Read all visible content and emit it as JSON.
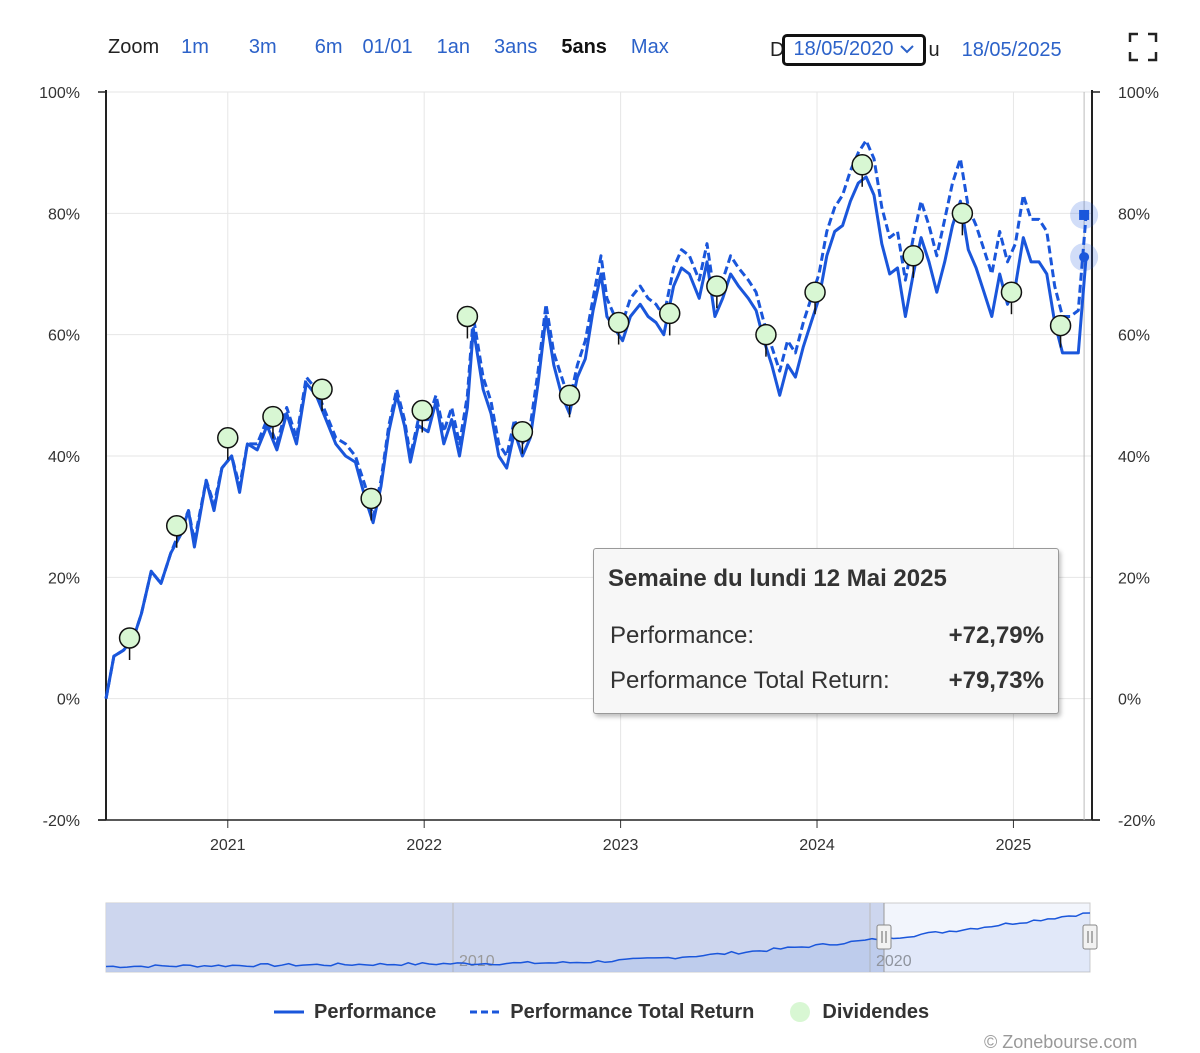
{
  "zoom": {
    "label": "Zoom",
    "options": [
      "1m",
      "3m",
      "6m",
      "01/01",
      "1an",
      "3ans",
      "5ans",
      "Max"
    ],
    "active": "5ans"
  },
  "range": {
    "from_label": "D",
    "from_value": "18/05/2020",
    "to_label": "u",
    "to_value": "18/05/2025"
  },
  "tooltip": {
    "title": "Semaine du lundi 12 Mai 2025",
    "rows": [
      {
        "label": "Performance:",
        "value": "+72,79%"
      },
      {
        "label": "Performance Total Return:",
        "value": "+79,73%"
      }
    ]
  },
  "legend": {
    "performance": "Performance",
    "total_return": "Performance Total Return",
    "dividends": "Dividendes"
  },
  "copyright": "© Zonebourse.com",
  "colors": {
    "series": "#1a56db",
    "dividend_fill": "#d8f7d3",
    "navigator_fill": "#c9d3ec",
    "grid": "#e6e6e6"
  },
  "chart_data": {
    "type": "line",
    "y_ticks": [
      "100%",
      "80%",
      "60%",
      "40%",
      "20%",
      "0%",
      "-20%"
    ],
    "ylim": [
      -20,
      100
    ],
    "x_ticks": [
      "2021",
      "2022",
      "2023",
      "2024",
      "2025"
    ],
    "xlim": [
      2020.38,
      2025.4
    ],
    "grid": true,
    "legend_position": "bottom",
    "series": [
      {
        "name": "Performance",
        "style": "solid",
        "points": [
          [
            2020.38,
            0
          ],
          [
            2020.42,
            7
          ],
          [
            2020.47,
            8
          ],
          [
            2020.52,
            10
          ],
          [
            2020.56,
            14
          ],
          [
            2020.61,
            21
          ],
          [
            2020.66,
            19
          ],
          [
            2020.71,
            24
          ],
          [
            2020.76,
            27
          ],
          [
            2020.8,
            31
          ],
          [
            2020.83,
            25
          ],
          [
            2020.89,
            36
          ],
          [
            2020.93,
            31
          ],
          [
            2020.97,
            38
          ],
          [
            2021.02,
            40
          ],
          [
            2021.06,
            34
          ],
          [
            2021.1,
            42
          ],
          [
            2021.15,
            41
          ],
          [
            2021.2,
            45
          ],
          [
            2021.25,
            41
          ],
          [
            2021.3,
            47
          ],
          [
            2021.35,
            42
          ],
          [
            2021.4,
            52
          ],
          [
            2021.45,
            50
          ],
          [
            2021.5,
            46
          ],
          [
            2021.55,
            42
          ],
          [
            2021.6,
            40
          ],
          [
            2021.65,
            39
          ],
          [
            2021.7,
            33
          ],
          [
            2021.74,
            29
          ],
          [
            2021.78,
            35
          ],
          [
            2021.82,
            44
          ],
          [
            2021.86,
            50
          ],
          [
            2021.9,
            45
          ],
          [
            2021.93,
            39
          ],
          [
            2021.97,
            45
          ],
          [
            2022.02,
            44
          ],
          [
            2022.06,
            49
          ],
          [
            2022.1,
            42
          ],
          [
            2022.14,
            46
          ],
          [
            2022.18,
            40
          ],
          [
            2022.22,
            48
          ],
          [
            2022.25,
            61
          ],
          [
            2022.3,
            51
          ],
          [
            2022.34,
            47
          ],
          [
            2022.38,
            40
          ],
          [
            2022.42,
            38
          ],
          [
            2022.46,
            44
          ],
          [
            2022.5,
            40
          ],
          [
            2022.54,
            43
          ],
          [
            2022.58,
            52
          ],
          [
            2022.62,
            63
          ],
          [
            2022.66,
            55
          ],
          [
            2022.7,
            50
          ],
          [
            2022.74,
            47
          ],
          [
            2022.78,
            53
          ],
          [
            2022.82,
            56
          ],
          [
            2022.86,
            64
          ],
          [
            2022.9,
            70
          ],
          [
            2022.93,
            63
          ],
          [
            2022.97,
            61
          ],
          [
            2023.01,
            59
          ],
          [
            2023.05,
            63
          ],
          [
            2023.1,
            65
          ],
          [
            2023.14,
            63
          ],
          [
            2023.18,
            62
          ],
          [
            2023.22,
            60
          ],
          [
            2023.27,
            68
          ],
          [
            2023.31,
            71
          ],
          [
            2023.35,
            70
          ],
          [
            2023.4,
            66
          ],
          [
            2023.44,
            72
          ],
          [
            2023.48,
            63
          ],
          [
            2023.52,
            66
          ],
          [
            2023.56,
            70
          ],
          [
            2023.6,
            68
          ],
          [
            2023.65,
            66
          ],
          [
            2023.69,
            64
          ],
          [
            2023.73,
            59
          ],
          [
            2023.77,
            55
          ],
          [
            2023.81,
            50
          ],
          [
            2023.85,
            55
          ],
          [
            2023.89,
            53
          ],
          [
            2023.93,
            58
          ],
          [
            2023.97,
            62
          ],
          [
            2024.01,
            66
          ],
          [
            2024.05,
            73
          ],
          [
            2024.09,
            77
          ],
          [
            2024.13,
            78
          ],
          [
            2024.17,
            82
          ],
          [
            2024.21,
            85
          ],
          [
            2024.25,
            86
          ],
          [
            2024.29,
            83
          ],
          [
            2024.33,
            75
          ],
          [
            2024.37,
            70
          ],
          [
            2024.41,
            71
          ],
          [
            2024.45,
            63
          ],
          [
            2024.49,
            70
          ],
          [
            2024.53,
            76
          ],
          [
            2024.57,
            72
          ],
          [
            2024.61,
            67
          ],
          [
            2024.65,
            72
          ],
          [
            2024.69,
            78
          ],
          [
            2024.73,
            82
          ],
          [
            2024.77,
            74
          ],
          [
            2024.81,
            71
          ],
          [
            2024.85,
            67
          ],
          [
            2024.89,
            63
          ],
          [
            2024.93,
            70
          ],
          [
            2024.97,
            65
          ],
          [
            2025.01,
            68
          ],
          [
            2025.05,
            76
          ],
          [
            2025.09,
            72
          ],
          [
            2025.13,
            72
          ],
          [
            2025.17,
            70
          ],
          [
            2025.21,
            62
          ],
          [
            2025.25,
            57
          ],
          [
            2025.29,
            57
          ],
          [
            2025.33,
            57
          ],
          [
            2025.37,
            72.79
          ]
        ]
      },
      {
        "name": "Performance Total Return",
        "style": "dashed",
        "points": [
          [
            2020.38,
            0
          ],
          [
            2020.42,
            7
          ],
          [
            2020.47,
            8
          ],
          [
            2020.52,
            10
          ],
          [
            2020.56,
            14
          ],
          [
            2020.61,
            21
          ],
          [
            2020.66,
            19
          ],
          [
            2020.71,
            24
          ],
          [
            2020.76,
            28
          ],
          [
            2020.8,
            31
          ],
          [
            2020.83,
            26
          ],
          [
            2020.89,
            36
          ],
          [
            2020.93,
            32
          ],
          [
            2020.97,
            38
          ],
          [
            2021.02,
            40
          ],
          [
            2021.06,
            35
          ],
          [
            2021.1,
            42
          ],
          [
            2021.15,
            42
          ],
          [
            2021.2,
            46
          ],
          [
            2021.25,
            42
          ],
          [
            2021.3,
            48
          ],
          [
            2021.35,
            43
          ],
          [
            2021.4,
            53
          ],
          [
            2021.45,
            51
          ],
          [
            2021.5,
            47
          ],
          [
            2021.55,
            43
          ],
          [
            2021.6,
            42
          ],
          [
            2021.65,
            40
          ],
          [
            2021.7,
            35
          ],
          [
            2021.74,
            30
          ],
          [
            2021.78,
            36
          ],
          [
            2021.82,
            45
          ],
          [
            2021.86,
            51
          ],
          [
            2021.9,
            46
          ],
          [
            2021.93,
            40
          ],
          [
            2021.97,
            46
          ],
          [
            2022.02,
            46
          ],
          [
            2022.06,
            50
          ],
          [
            2022.1,
            44
          ],
          [
            2022.14,
            48
          ],
          [
            2022.18,
            42
          ],
          [
            2022.22,
            50
          ],
          [
            2022.25,
            63
          ],
          [
            2022.3,
            53
          ],
          [
            2022.34,
            49
          ],
          [
            2022.38,
            42
          ],
          [
            2022.42,
            40
          ],
          [
            2022.46,
            46
          ],
          [
            2022.5,
            42
          ],
          [
            2022.54,
            45
          ],
          [
            2022.58,
            54
          ],
          [
            2022.62,
            65
          ],
          [
            2022.66,
            57
          ],
          [
            2022.7,
            53
          ],
          [
            2022.74,
            49
          ],
          [
            2022.78,
            55
          ],
          [
            2022.82,
            59
          ],
          [
            2022.86,
            66
          ],
          [
            2022.9,
            73
          ],
          [
            2022.93,
            66
          ],
          [
            2022.97,
            63
          ],
          [
            2023.01,
            62
          ],
          [
            2023.05,
            66
          ],
          [
            2023.1,
            68
          ],
          [
            2023.14,
            66
          ],
          [
            2023.18,
            65
          ],
          [
            2023.22,
            63
          ],
          [
            2023.27,
            71
          ],
          [
            2023.31,
            74
          ],
          [
            2023.35,
            73
          ],
          [
            2023.4,
            69
          ],
          [
            2023.44,
            75
          ],
          [
            2023.48,
            66
          ],
          [
            2023.52,
            69
          ],
          [
            2023.56,
            73
          ],
          [
            2023.6,
            71
          ],
          [
            2023.65,
            69
          ],
          [
            2023.69,
            67
          ],
          [
            2023.73,
            62
          ],
          [
            2023.77,
            58
          ],
          [
            2023.81,
            54
          ],
          [
            2023.85,
            59
          ],
          [
            2023.89,
            57
          ],
          [
            2023.93,
            62
          ],
          [
            2023.97,
            66
          ],
          [
            2024.01,
            70
          ],
          [
            2024.05,
            77
          ],
          [
            2024.09,
            81
          ],
          [
            2024.13,
            83
          ],
          [
            2024.17,
            87
          ],
          [
            2024.21,
            90
          ],
          [
            2024.25,
            92
          ],
          [
            2024.29,
            89
          ],
          [
            2024.33,
            81
          ],
          [
            2024.37,
            76
          ],
          [
            2024.41,
            77
          ],
          [
            2024.45,
            69
          ],
          [
            2024.49,
            76
          ],
          [
            2024.53,
            82
          ],
          [
            2024.57,
            78
          ],
          [
            2024.61,
            73
          ],
          [
            2024.65,
            79
          ],
          [
            2024.69,
            85
          ],
          [
            2024.73,
            89
          ],
          [
            2024.77,
            81
          ],
          [
            2024.81,
            78
          ],
          [
            2024.85,
            74
          ],
          [
            2024.89,
            70
          ],
          [
            2024.93,
            77
          ],
          [
            2024.97,
            72
          ],
          [
            2025.01,
            75
          ],
          [
            2025.05,
            83
          ],
          [
            2025.09,
            79
          ],
          [
            2025.13,
            79
          ],
          [
            2025.17,
            77
          ],
          [
            2025.21,
            68
          ],
          [
            2025.25,
            63
          ],
          [
            2025.29,
            63
          ],
          [
            2025.33,
            64
          ],
          [
            2025.37,
            79.73
          ]
        ]
      },
      {
        "name": "Dividendes",
        "style": "markers",
        "points": [
          [
            2020.5,
            10
          ],
          [
            2020.74,
            28.5
          ],
          [
            2021.0,
            43
          ],
          [
            2021.23,
            46.5
          ],
          [
            2021.48,
            51
          ],
          [
            2021.73,
            33
          ],
          [
            2021.99,
            47.5
          ],
          [
            2022.22,
            63
          ],
          [
            2022.5,
            44
          ],
          [
            2022.74,
            50
          ],
          [
            2022.99,
            62
          ],
          [
            2023.25,
            63.5
          ],
          [
            2023.49,
            68
          ],
          [
            2023.74,
            60
          ],
          [
            2023.99,
            67
          ],
          [
            2024.23,
            88
          ],
          [
            2024.49,
            73
          ],
          [
            2024.74,
            80
          ],
          [
            2024.99,
            67
          ],
          [
            2025.24,
            61.5
          ]
        ]
      }
    ],
    "tooltip_points": [
      72.79,
      79.73
    ],
    "navigator": {
      "x_ticks": [
        "2010",
        "2020"
      ]
    }
  }
}
